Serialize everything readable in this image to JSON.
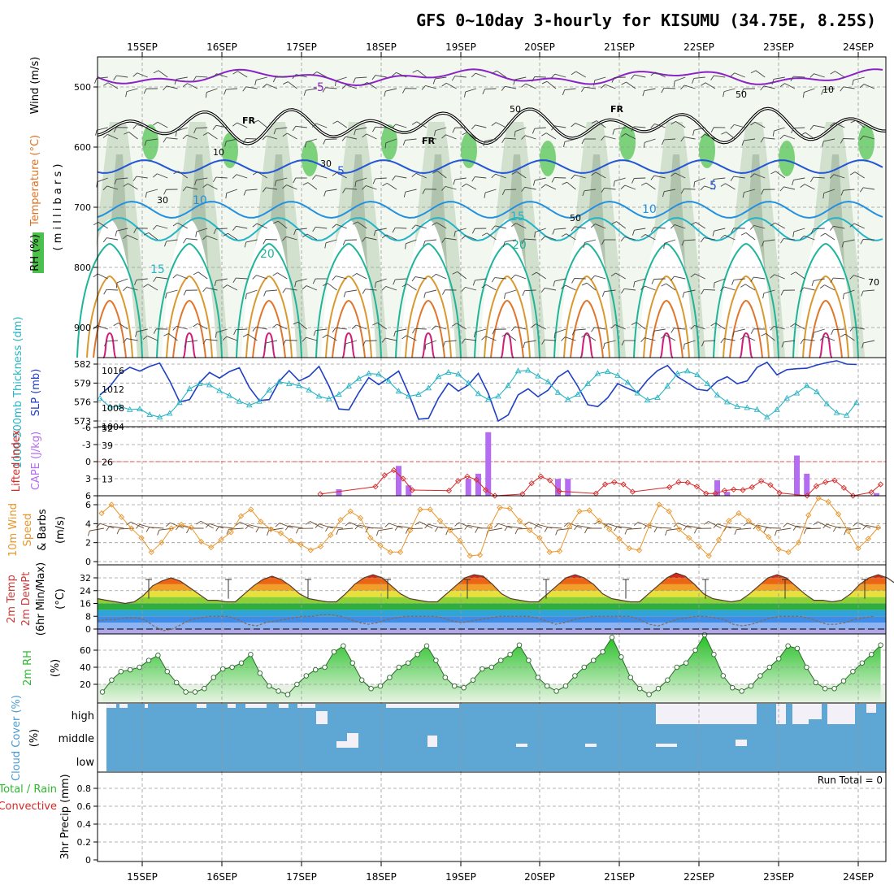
{
  "chart_data": {
    "type": "meteogram",
    "title": "GFS 0~10day 3-hourly for KISUMU (34.75E, 8.25S)",
    "date_labels": [
      "15SEP",
      "16SEP",
      "17SEP",
      "18SEP",
      "19SEP",
      "20SEP",
      "21SEP",
      "22SEP",
      "23SEP",
      "24SEP"
    ],
    "colors": {
      "cloud_fill": "#5ea6d4",
      "cloud_gap": "#f3f0f7",
      "rh_fill": "#2db82d",
      "cape_bar": "#b46cf0",
      "lifted_index": "#d82828",
      "slp_line": "#1f3fc4",
      "thickness_line": "#28b4c4",
      "wind_speed": "#e8962c",
      "barb": "#6b4a2c",
      "dewpoint": "#8a6a50"
    },
    "panels": {
      "upper": {
        "label_wind": "Wind (m/s)",
        "label_temp": "Temperature (°C)",
        "label_rh": "RH (%)",
        "label_pressure": "( m i l l i b a r s )",
        "y_ticks": [
          500,
          600,
          700,
          800,
          900
        ],
        "ylim": [
          450,
          950
        ],
        "freezing_label": "FR",
        "contour_labels": {
          "temp": [
            "-5",
            "5",
            "5",
            "10",
            "10",
            "15",
            "15",
            "20",
            "20"
          ],
          "rh": [
            "50",
            "50",
            "50",
            "30",
            "30",
            "10",
            "10",
            "70"
          ]
        }
      },
      "slp_thickness": {
        "label_thickness": "1000-500mb Thickness (dm)",
        "label_slp": "SLP (mb)",
        "y_ticks_thickness": [
          573,
          576,
          579,
          582
        ],
        "y_ticks_slp": [
          1004,
          1008,
          1012,
          1016
        ],
        "slp": [
          1010.8,
          1012.6,
          1015.4,
          1016.7,
          1015.9,
          1016.9,
          1017.6,
          1013.8,
          1009.3,
          1009.8,
          1013.4,
          1015.6,
          1014.4,
          1015.8,
          1016.6,
          1012.4,
          1009.6,
          1009.8,
          1013.7,
          1016.0,
          1013.8,
          1014.8,
          1016.9,
          1012.7,
          1007.8,
          1007.6,
          1011.3,
          1014.5,
          1013.0,
          1014.4,
          1015.9,
          1011.1,
          1005.6,
          1005.8,
          1010.1,
          1013.3,
          1011.6,
          1012.9,
          1015.4,
          1011.1,
          1005.2,
          1006.5,
          1010.8,
          1012.1,
          1010.4,
          1011.8,
          1014.6,
          1016.0,
          1012.6,
          1008.7,
          1008.3,
          1010.2,
          1013.2,
          1012.2,
          1011.3,
          1014.0,
          1016.0,
          1017.1,
          1014.7,
          1013.4,
          1012.0,
          1011.7,
          1013.7,
          1014.7,
          1013.2,
          1013.8,
          1016.7,
          1017.8,
          1015.1,
          1016.2,
          1016.4,
          1016.5,
          1017.2,
          1017.7,
          1018.1,
          1017.4,
          1017.3
        ],
        "thickness": [
          576.6,
          575.2,
          575.3,
          574.8,
          574.9,
          574.0,
          573.6,
          574.2,
          575.9,
          578.1,
          578.9,
          578.7,
          577.8,
          577.0,
          576.1,
          575.5,
          576.1,
          577.9,
          579.2,
          578.9,
          578.6,
          577.9,
          576.9,
          576.5,
          577.2,
          578.5,
          579.7,
          580.5,
          580.4,
          579.3,
          577.7,
          576.9,
          577.2,
          578.2,
          580.0,
          580.7,
          580.4,
          579.0,
          577.3,
          576.4,
          576.9,
          578.6,
          580.9,
          581.0,
          580.1,
          579.2,
          577.5,
          576.4,
          577.2,
          578.9,
          580.5,
          580.8,
          580.2,
          579.1,
          577.4,
          576.3,
          576.7,
          578.5,
          580.5,
          580.9,
          580.3,
          578.9,
          577.1,
          576.0,
          575.3,
          575.1,
          574.8,
          573.6,
          574.8,
          576.6,
          577.4,
          578.6,
          577.6,
          575.7,
          574.3,
          573.9,
          575.9
        ]
      },
      "cape_li": {
        "label_li": "Lifted Index",
        "label_cape": "CAPE (J/kg)",
        "y_ticks_li": [
          "-6",
          "-3",
          "0",
          "3",
          "6"
        ],
        "y_ticks_cape": [
          13,
          26,
          39,
          52
        ],
        "cape_bars": [
          {
            "x_index": 24,
            "value": 5
          },
          {
            "x_index": 30,
            "value": 23
          },
          {
            "x_index": 31,
            "value": 8
          },
          {
            "x_index": 37,
            "value": 13
          },
          {
            "x_index": 38,
            "value": 17
          },
          {
            "x_index": 39,
            "value": 49
          },
          {
            "x_index": 46,
            "value": 13
          },
          {
            "x_index": 47,
            "value": 13
          },
          {
            "x_index": 62,
            "value": 12
          },
          {
            "x_index": 63,
            "value": 3
          },
          {
            "x_index": 70,
            "value": 31
          },
          {
            "x_index": 71,
            "value": 17
          },
          {
            "x_index": 78,
            "value": 2
          }
        ],
        "lifted_index": [
          6.6,
          6.2,
          7,
          7.3,
          7.5,
          7.6,
          7.3,
          7.2,
          6.9,
          7.1,
          7.4,
          7.2,
          7,
          7.6,
          7.8,
          7.6,
          7.2,
          6.9,
          7.2,
          7.6,
          7.5,
          7.3,
          6.9,
          6.3,
          5.7,
          6.2,
          7.1,
          7.5,
          7.6,
          6.8,
          4.4,
          2.4,
          1.5,
          3.0,
          5.0,
          6.1,
          7.0,
          6.8,
          5.1,
          3.4,
          2.6,
          3.2,
          5.0,
          6.0,
          6.7,
          6.6,
          5.7,
          3.8,
          2.6,
          3.3,
          5.2,
          6.1,
          6.8,
          6.6,
          5.6,
          4.0,
          3.6,
          4.0,
          5.3,
          6.2,
          7.0,
          6.5,
          4.5,
          3.6,
          3.7,
          4.4,
          5.6,
          5.6,
          5.1,
          4.9,
          5.0,
          4.5,
          3.4,
          4.1,
          5.5,
          6.4,
          6.9,
          6.0,
          4.3,
          3.6,
          3.3,
          4.6,
          6.0,
          6.9,
          5.4,
          4.0
        ]
      },
      "wind10": {
        "label": "10m Wind Speed & Barbs (m/s)",
        "y_ticks": [
          0,
          2,
          4,
          6
        ],
        "speed": [
          5.1,
          6.0,
          4.7,
          3.5,
          2.5,
          1.0,
          2.0,
          3.5,
          3.9,
          3.6,
          2.1,
          1.5,
          2.3,
          3.1,
          4.8,
          5.5,
          4.2,
          3.4,
          3.0,
          2.2,
          1.8,
          1.2,
          1.6,
          2.8,
          4.4,
          5.3,
          4.6,
          2.5,
          1.7,
          1.0,
          1.0,
          3.3,
          5.5,
          5.5,
          4.3,
          3.3,
          2.2,
          0.6,
          0.7,
          3.7,
          5.7,
          5.6,
          4.3,
          3.3,
          2.5,
          1.0,
          1.1,
          3.7,
          5.3,
          5.4,
          4.3,
          3.4,
          2.4,
          1.4,
          1.2,
          3.8,
          6.0,
          5.3,
          3.4,
          2.5,
          1.6,
          0.6,
          2.3,
          4.3,
          5.1,
          4.3,
          3.5,
          2.6,
          1.3,
          1.0,
          2.0,
          4.9,
          6.7,
          6.3,
          5.0,
          3.2,
          1.4,
          2.4,
          3.6,
          4.4
        ]
      },
      "temp2m": {
        "label": "2m Temp 2m DewPt (6hr Min/Max) (°C)",
        "y_ticks": [
          0,
          8,
          16,
          24,
          32
        ],
        "temp": [
          19,
          18,
          17,
          16,
          17,
          21,
          27,
          30,
          32,
          30,
          26,
          22,
          18,
          18,
          17,
          17,
          22,
          27,
          31,
          33,
          31,
          27,
          22,
          19,
          18,
          17,
          17,
          22,
          28,
          32,
          34,
          32,
          27,
          22,
          19,
          18,
          17,
          17,
          22,
          27,
          32,
          34,
          33,
          28,
          22,
          19,
          18,
          17,
          17,
          22,
          27,
          32,
          34,
          32,
          28,
          22,
          19,
          18,
          17,
          17,
          22,
          27,
          32,
          35,
          33,
          28,
          22,
          19,
          18,
          17,
          18,
          22,
          27,
          32,
          34,
          32,
          27,
          22,
          18,
          18,
          17,
          18,
          22,
          28,
          32,
          34,
          32,
          28,
          23,
          19,
          19
        ],
        "dewpoint": [
          5,
          6,
          6,
          7,
          7,
          6,
          2,
          -1,
          0,
          3,
          6,
          7,
          8,
          8,
          8,
          6,
          3,
          2,
          4,
          5,
          6,
          7,
          8,
          8,
          9,
          9,
          8,
          6,
          4,
          3,
          4,
          6,
          7,
          8,
          8,
          8,
          8,
          7,
          5,
          4,
          5,
          6,
          7,
          8,
          8,
          8,
          8,
          7,
          5,
          3,
          4,
          6,
          7,
          8,
          8,
          8,
          8,
          8,
          6,
          3,
          2,
          4,
          6,
          7,
          8,
          8,
          7,
          6,
          3,
          2,
          3,
          5,
          7,
          8,
          8,
          8,
          7,
          5,
          3,
          3,
          4,
          6,
          7,
          8
        ]
      },
      "rh2m": {
        "label": "2m RH (%)",
        "y_ticks": [
          20,
          40,
          60
        ],
        "values": [
          11,
          25,
          35,
          37,
          40,
          48,
          54,
          35,
          22,
          11,
          11,
          15,
          28,
          38,
          40,
          45,
          55,
          33,
          18,
          12,
          8,
          20,
          30,
          37,
          40,
          58,
          65,
          45,
          25,
          15,
          18,
          28,
          40,
          45,
          55,
          65,
          48,
          28,
          18,
          16,
          25,
          38,
          40,
          48,
          55,
          66,
          48,
          28,
          18,
          12,
          18,
          30,
          40,
          48,
          58,
          75,
          52,
          28,
          15,
          8,
          15,
          25,
          40,
          45,
          60,
          78,
          55,
          30,
          16,
          12,
          18,
          30,
          40,
          50,
          65,
          62,
          40,
          22,
          15,
          15,
          24,
          35,
          45,
          55,
          66,
          40
        ]
      },
      "cloud": {
        "label": "Cloud Cover (%)",
        "levels": [
          "high",
          "middle",
          "low"
        ]
      },
      "precip": {
        "label_total": "Total / Rain",
        "label_conv": "Convective",
        "label_axis": "3hr Precip (mm)",
        "run_total": "Run Total = 0",
        "y_ticks": [
          "0",
          "0.2",
          "0.4",
          "0.6",
          "0.8"
        ]
      }
    }
  }
}
